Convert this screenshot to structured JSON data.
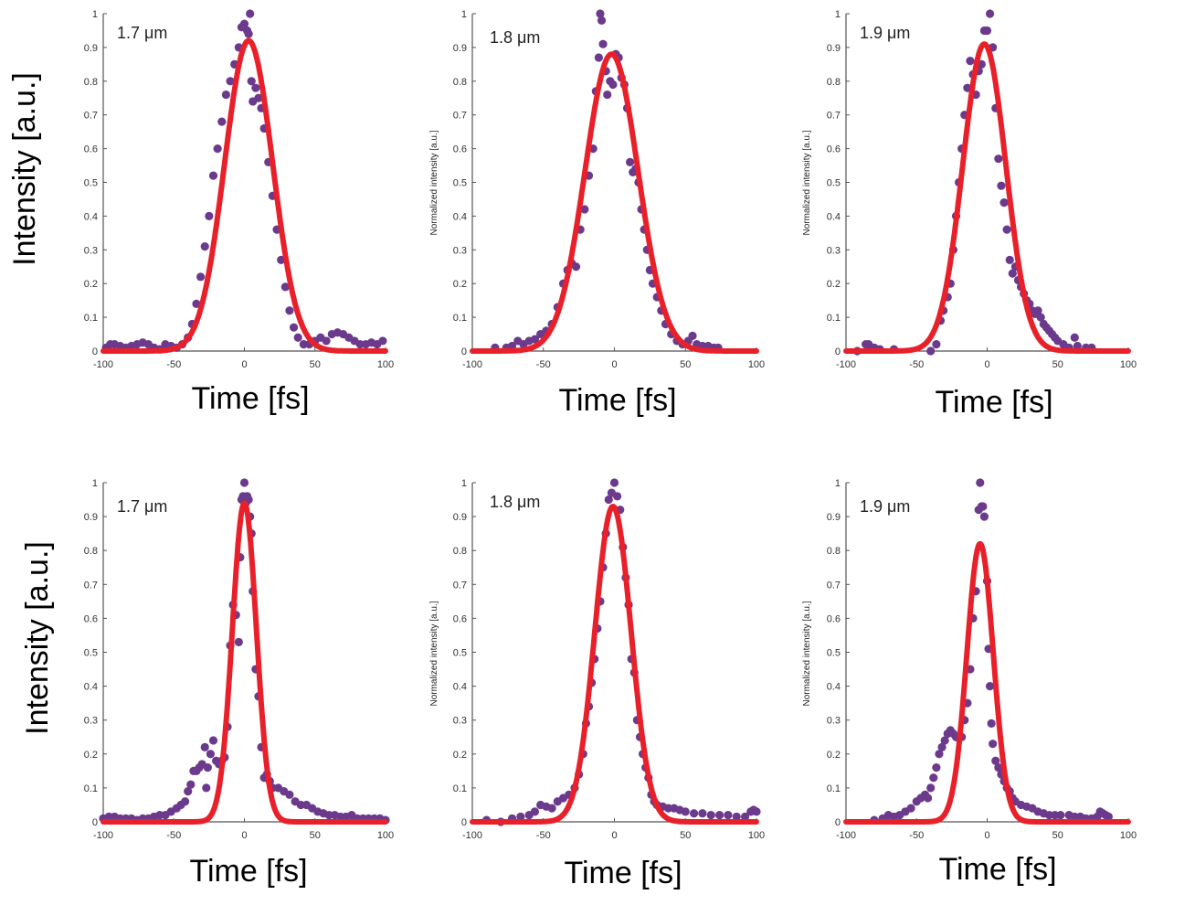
{
  "figure": {
    "description": "Measured temporal pulse intensity (dots) with Gaussian fits (red lines) at three wavelengths, two rows"
  },
  "colors": {
    "measured": "#6b3a8c",
    "fit": "#e8202a",
    "axis": "#555555"
  },
  "chart_data": [
    {
      "type": "scatter",
      "panel": "top-left",
      "label": "1.7 μm",
      "xlabel": "Time [fs]",
      "ylabel": "Intensity [a.u.]",
      "xlim": [
        -100,
        100
      ],
      "ylim": [
        0,
        1
      ],
      "xticks": [
        "-100",
        "-50",
        "0",
        "50",
        "100"
      ],
      "yticks": [
        "0",
        "0.1",
        "0.2",
        "0.3",
        "0.4",
        "0.5",
        "0.6",
        "0.7",
        "0.8",
        "0.9",
        "1"
      ],
      "fit": {
        "name": "Gaussian fit",
        "amplitude": 0.92,
        "center": 3,
        "fwhm": 40
      },
      "series": [
        {
          "name": "Measured",
          "x": [
            -98,
            -95,
            -92,
            -88,
            -84,
            -80,
            -76,
            -72,
            -68,
            -64,
            -60,
            -56,
            -52,
            -48,
            -44,
            -40,
            -37,
            -34,
            -31,
            -28,
            -25,
            -22,
            -19,
            -16,
            -13,
            -10,
            -7,
            -4,
            -2,
            0,
            2,
            3,
            4,
            5,
            6,
            8,
            10,
            12,
            14,
            17,
            20,
            23,
            26,
            29,
            32,
            35,
            38,
            42,
            46,
            50,
            54,
            58,
            62,
            66,
            70,
            74,
            78,
            82,
            86,
            90,
            94,
            98
          ],
          "y": [
            0.01,
            0.02,
            0.02,
            0.015,
            0.01,
            0.015,
            0.02,
            0.025,
            0.02,
            0.01,
            0.005,
            0.02,
            0.015,
            0.01,
            0.02,
            0.04,
            0.08,
            0.14,
            0.22,
            0.31,
            0.4,
            0.52,
            0.6,
            0.68,
            0.76,
            0.8,
            0.85,
            0.9,
            0.96,
            0.97,
            0.95,
            0.94,
            1.0,
            0.8,
            0.74,
            0.78,
            0.75,
            0.72,
            0.66,
            0.56,
            0.46,
            0.36,
            0.27,
            0.19,
            0.12,
            0.07,
            0.04,
            0.02,
            0.02,
            0.03,
            0.04,
            0.03,
            0.05,
            0.055,
            0.05,
            0.04,
            0.03,
            0.02,
            0.02,
            0.025,
            0.02,
            0.03
          ]
        }
      ]
    },
    {
      "type": "scatter",
      "panel": "top-middle",
      "label": "1.8 μm",
      "xlabel": "Time [fs]",
      "ylabel": "Normalized intensity [a.u.]",
      "xlim": [
        -100,
        100
      ],
      "ylim": [
        0,
        1
      ],
      "xticks": [
        "-100",
        "-50",
        "0",
        "50",
        "100"
      ],
      "yticks": [
        "0",
        "0.1",
        "0.2",
        "0.3",
        "0.4",
        "0.5",
        "0.6",
        "0.7",
        "0.8",
        "0.9",
        "1"
      ],
      "fit": {
        "name": "Gaussian fit",
        "amplitude": 0.88,
        "center": -2,
        "fwhm": 44
      },
      "series": [
        {
          "name": "Measured",
          "x": [
            -84,
            -76,
            -72,
            -68,
            -64,
            -60,
            -56,
            -52,
            -48,
            -44,
            -40,
            -36,
            -33,
            -30,
            -27,
            -24,
            -21,
            -18,
            -15,
            -13,
            -11,
            -10,
            -9,
            -8,
            -6,
            -5,
            -3,
            -1,
            1,
            3,
            5,
            7,
            9,
            11,
            13,
            15,
            17,
            19,
            21,
            23,
            25,
            27,
            30,
            33,
            36,
            40,
            44,
            48,
            52,
            55,
            58,
            62,
            66,
            70,
            73
          ],
          "y": [
            0.01,
            0.01,
            0.015,
            0.03,
            0.02,
            0.03,
            0.035,
            0.05,
            0.06,
            0.08,
            0.13,
            0.2,
            0.24,
            0.26,
            0.25,
            0.36,
            0.42,
            0.52,
            0.6,
            0.77,
            0.87,
            1.0,
            0.98,
            0.91,
            0.83,
            0.76,
            0.8,
            0.79,
            0.88,
            0.87,
            0.81,
            0.79,
            0.72,
            0.56,
            0.53,
            0.54,
            0.5,
            0.42,
            0.36,
            0.3,
            0.24,
            0.2,
            0.16,
            0.12,
            0.08,
            0.05,
            0.03,
            0.02,
            0.03,
            0.045,
            0.02,
            0.015,
            0.015,
            0.01,
            0.01
          ]
        }
      ]
    },
    {
      "type": "scatter",
      "panel": "top-right",
      "label": "1.9 μm",
      "xlabel": "Time [fs]",
      "ylabel": "Normalized intensity [a.u.]",
      "xlim": [
        -100,
        100
      ],
      "ylim": [
        0,
        1
      ],
      "xticks": [
        "-100",
        "-50",
        "0",
        "50",
        "100"
      ],
      "yticks": [
        "0",
        "0.1",
        "0.2",
        "0.3",
        "0.4",
        "0.5",
        "0.6",
        "0.7",
        "0.8",
        "0.9",
        "1"
      ],
      "fit": {
        "name": "Gaussian fit",
        "amplitude": 0.91,
        "center": -2,
        "fwhm": 36
      },
      "series": [
        {
          "name": "Measured",
          "x": [
            -92,
            -86,
            -84,
            -80,
            -76,
            -66,
            -40,
            -36,
            -33,
            -31,
            -28,
            -26,
            -24,
            -22,
            -20,
            -18,
            -16,
            -14,
            -12,
            -10,
            -8,
            -6,
            -4,
            -2,
            0,
            2,
            4,
            6,
            8,
            10,
            12,
            14,
            16,
            18,
            20,
            22,
            24,
            26,
            28,
            30,
            32,
            34,
            36,
            38,
            40,
            42,
            44,
            46,
            48,
            50,
            54,
            58,
            62,
            64,
            70,
            74
          ],
          "y": [
            0.0,
            0.02,
            0.02,
            0.01,
            0.005,
            0.005,
            0.0,
            0.02,
            0.09,
            0.12,
            0.16,
            0.2,
            0.3,
            0.4,
            0.5,
            0.6,
            0.7,
            0.78,
            0.86,
            0.82,
            0.76,
            0.83,
            0.85,
            0.95,
            0.95,
            1.0,
            0.9,
            0.72,
            0.57,
            0.49,
            0.44,
            0.36,
            0.27,
            0.23,
            0.25,
            0.21,
            0.19,
            0.17,
            0.15,
            0.14,
            0.12,
            0.11,
            0.12,
            0.1,
            0.08,
            0.07,
            0.06,
            0.05,
            0.04,
            0.03,
            0.02,
            0.01,
            0.04,
            0.015,
            0.01,
            0.01
          ]
        }
      ]
    },
    {
      "type": "scatter",
      "panel": "bottom-left",
      "label": "1.7 μm",
      "xlabel": "Time [fs]",
      "ylabel": "Intensity [a.u.]",
      "xlim": [
        -100,
        100
      ],
      "ylim": [
        0,
        1
      ],
      "xticks": [
        "-100",
        "-50",
        "0",
        "50",
        "100"
      ],
      "yticks": [
        "0",
        "0.1",
        "0.2",
        "0.3",
        "0.4",
        "0.5",
        "0.6",
        "0.7",
        "0.8",
        "0.9",
        "1"
      ],
      "fit": {
        "name": "Gaussian fit",
        "amplitude": 0.94,
        "center": 0,
        "fwhm": 20
      },
      "series": [
        {
          "name": "Measured",
          "x": [
            -100,
            -96,
            -92,
            -88,
            -84,
            -80,
            -76,
            -72,
            -68,
            -64,
            -60,
            -56,
            -52,
            -48,
            -45,
            -42,
            -40,
            -38,
            -36,
            -34,
            -32,
            -30,
            -28,
            -27,
            -26,
            -24,
            -22,
            -20,
            -18,
            -16,
            -14,
            -12,
            -10,
            -8,
            -6,
            -4,
            -3,
            -2,
            -1,
            0,
            1,
            2,
            3,
            4,
            5,
            6,
            8,
            10,
            12,
            14,
            16,
            18,
            20,
            24,
            28,
            32,
            36,
            40,
            44,
            48,
            52,
            56,
            60,
            64,
            68,
            72,
            76,
            80,
            84,
            88,
            92,
            96,
            100
          ],
          "y": [
            0.01,
            0.015,
            0.015,
            0.01,
            0.01,
            0.01,
            0.005,
            0.01,
            0.01,
            0.015,
            0.02,
            0.02,
            0.03,
            0.04,
            0.05,
            0.06,
            0.09,
            0.11,
            0.15,
            0.15,
            0.16,
            0.17,
            0.22,
            0.1,
            0.16,
            0.2,
            0.24,
            0.18,
            0.17,
            0.18,
            0.19,
            0.28,
            0.52,
            0.64,
            0.61,
            0.53,
            0.78,
            0.95,
            0.96,
            1.0,
            0.94,
            0.96,
            0.95,
            0.9,
            0.85,
            0.68,
            0.45,
            0.37,
            0.22,
            0.13,
            0.14,
            0.12,
            0.1,
            0.1,
            0.09,
            0.08,
            0.06,
            0.05,
            0.05,
            0.04,
            0.03,
            0.025,
            0.02,
            0.02,
            0.015,
            0.015,
            0.02,
            0.01,
            0.01,
            0.01,
            0.01,
            0.01,
            0.005
          ]
        }
      ]
    },
    {
      "type": "scatter",
      "panel": "bottom-middle",
      "label": "1.8 μm",
      "xlabel": "Time [fs]",
      "ylabel": "Normalized intensity [a.u.]",
      "xlim": [
        -100,
        100
      ],
      "ylim": [
        0,
        1
      ],
      "xticks": [
        "-100",
        "-50",
        "0",
        "50",
        "100"
      ],
      "yticks": [
        "0",
        "0.1",
        "0.2",
        "0.3",
        "0.4",
        "0.5",
        "0.6",
        "0.7",
        "0.8",
        "0.9",
        "1"
      ],
      "fit": {
        "name": "Gaussian fit",
        "amplitude": 0.93,
        "center": -1,
        "fwhm": 30
      },
      "series": [
        {
          "name": "Measured",
          "x": [
            -90,
            -80,
            -72,
            -66,
            -60,
            -56,
            -52,
            -48,
            -44,
            -40,
            -36,
            -32,
            -28,
            -25,
            -22,
            -20,
            -18,
            -16,
            -14,
            -12,
            -10,
            -8,
            -6,
            -4,
            -2,
            0,
            2,
            4,
            6,
            8,
            10,
            12,
            14,
            16,
            18,
            20,
            22,
            24,
            26,
            28,
            30,
            34,
            38,
            42,
            46,
            50,
            56,
            62,
            68,
            74,
            80,
            86,
            92,
            96,
            98,
            100
          ],
          "y": [
            0.005,
            0.0,
            0.01,
            0.015,
            0.02,
            0.03,
            0.05,
            0.045,
            0.04,
            0.06,
            0.07,
            0.08,
            0.1,
            0.14,
            0.2,
            0.29,
            0.34,
            0.41,
            0.48,
            0.57,
            0.65,
            0.75,
            0.85,
            0.95,
            0.97,
            1.0,
            0.96,
            0.92,
            0.81,
            0.72,
            0.64,
            0.48,
            0.44,
            0.3,
            0.25,
            0.2,
            0.16,
            0.13,
            0.08,
            0.06,
            0.05,
            0.045,
            0.04,
            0.04,
            0.035,
            0.03,
            0.025,
            0.025,
            0.02,
            0.02,
            0.02,
            0.015,
            0.015,
            0.03,
            0.035,
            0.03
          ]
        }
      ]
    },
    {
      "type": "scatter",
      "panel": "bottom-right",
      "label": "1.9 μm",
      "xlabel": "Time [fs]",
      "ylabel": "Normalized intensity [a.u.]",
      "xlim": [
        -100,
        100
      ],
      "ylim": [
        0,
        1
      ],
      "xticks": [
        "-100",
        "-50",
        "0",
        "50",
        "100"
      ],
      "yticks": [
        "0",
        "0.1",
        "0.2",
        "0.3",
        "0.4",
        "0.5",
        "0.6",
        "0.7",
        "0.8",
        "0.9",
        "1"
      ],
      "fit": {
        "name": "Gaussian fit",
        "amplitude": 0.82,
        "center": -5,
        "fwhm": 22
      },
      "series": [
        {
          "name": "Measured",
          "x": [
            -80,
            -74,
            -70,
            -66,
            -62,
            -58,
            -54,
            -50,
            -47,
            -44,
            -42,
            -40,
            -38,
            -36,
            -34,
            -32,
            -30,
            -28,
            -26,
            -24,
            -22,
            -20,
            -18,
            -16,
            -14,
            -12,
            -10,
            -8,
            -6,
            -5,
            -4,
            -3,
            -2,
            0,
            1,
            2,
            3,
            4,
            6,
            8,
            10,
            12,
            14,
            16,
            18,
            20,
            24,
            28,
            32,
            36,
            40,
            44,
            48,
            52,
            58,
            62,
            66,
            70,
            74,
            78,
            80,
            82,
            84,
            86
          ],
          "y": [
            0.005,
            0.01,
            0.02,
            0.015,
            0.02,
            0.03,
            0.04,
            0.06,
            0.07,
            0.08,
            0.07,
            0.1,
            0.13,
            0.16,
            0.2,
            0.22,
            0.24,
            0.26,
            0.27,
            0.26,
            0.25,
            0.25,
            0.25,
            0.3,
            0.35,
            0.45,
            0.6,
            0.68,
            0.92,
            1.0,
            0.93,
            0.93,
            0.9,
            0.71,
            0.51,
            0.4,
            0.29,
            0.23,
            0.18,
            0.16,
            0.14,
            0.12,
            0.1,
            0.09,
            0.07,
            0.06,
            0.05,
            0.045,
            0.04,
            0.03,
            0.025,
            0.02,
            0.02,
            0.02,
            0.02,
            0.015,
            0.015,
            0.01,
            0.01,
            0.015,
            0.03,
            0.025,
            0.02,
            0.015
          ]
        }
      ]
    }
  ]
}
